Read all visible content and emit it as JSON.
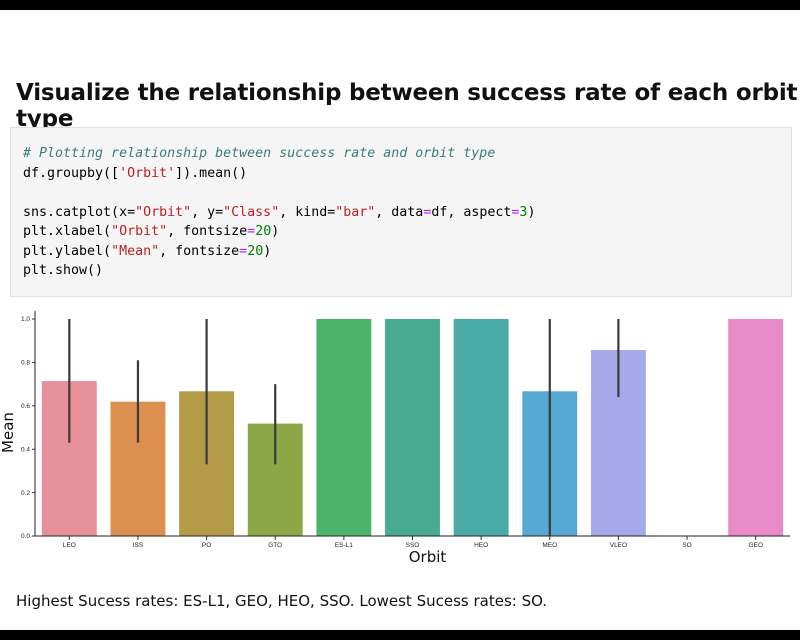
{
  "heading": "Visualize the relationship between success rate of each orbit type",
  "code": {
    "comment": "# Plotting relationship between success rate and orbit type",
    "line1_pre": "df.groupby([",
    "line1_str": "'Orbit'",
    "line1_post": "]).mean()",
    "line2_a": "sns.catplot(x=",
    "line2_s1": "\"Orbit\"",
    "line2_b": ", y=",
    "line2_s2": "\"Class\"",
    "line2_c": ", kind=",
    "line2_s3": "\"bar\"",
    "line2_d": ", data",
    "line2_eq": "=",
    "line2_e": "df, aspect",
    "line2_eq2": "=",
    "line2_n": "3",
    "line2_f": ")",
    "line3_a": "plt.xlabel(",
    "line3_s": "\"Orbit\"",
    "line3_b": ", fontsize",
    "line3_eq": "=",
    "line3_n": "20",
    "line3_c": ")",
    "line4_a": "plt.ylabel(",
    "line4_s": "\"Mean\"",
    "line4_b": ", fontsize",
    "line4_eq": "=",
    "line4_n": "20",
    "line4_c": ")",
    "line5": "plt.show()"
  },
  "chart_data": {
    "type": "bar",
    "categories": [
      "LEO",
      "ISS",
      "PO",
      "GTO",
      "ES-L1",
      "SSO",
      "HEO",
      "MEO",
      "VLEO",
      "SO",
      "GEO"
    ],
    "values": [
      0.714,
      0.619,
      0.667,
      0.518,
      1.0,
      1.0,
      1.0,
      0.667,
      0.857,
      0.0,
      1.0
    ],
    "error_bars": [
      [
        0.43,
        1.0
      ],
      [
        0.43,
        0.81
      ],
      [
        0.33,
        1.0
      ],
      [
        0.33,
        0.7
      ],
      null,
      null,
      null,
      [
        0.0,
        1.0
      ],
      [
        0.64,
        1.0
      ],
      null,
      null
    ],
    "colors": [
      "#e8909a",
      "#dd8f4f",
      "#b49b48",
      "#8da646",
      "#4bb36a",
      "#48aa91",
      "#4aaaa6",
      "#56a9d3",
      "#a6aaea",
      "#d59ae8",
      "#e98bc8"
    ],
    "xlabel": "Orbit",
    "ylabel": "Mean",
    "yticks": [
      "0.0",
      "0.2",
      "0.4",
      "0.6",
      "0.8",
      "1.0"
    ],
    "ylim": [
      0,
      1.0
    ],
    "grid": false
  },
  "summary": "Highest Sucess rates: ES-L1, GEO, HEO, SSO. Lowest Sucess rates: SO."
}
